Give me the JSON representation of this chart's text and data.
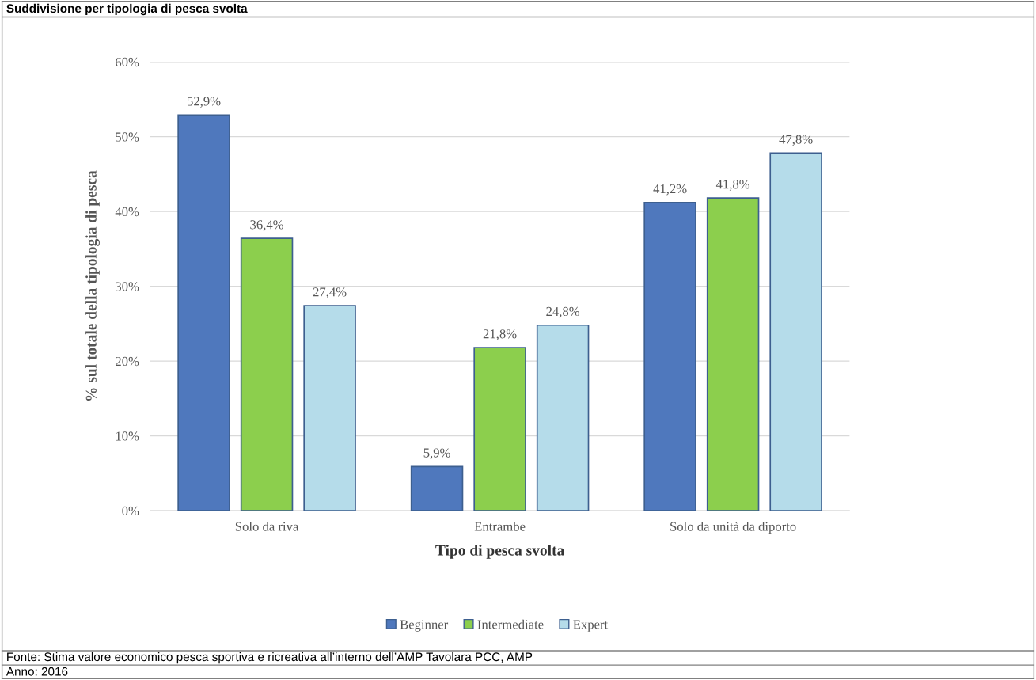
{
  "chart_data": {
    "type": "bar",
    "title": "Suddivisione per tipologia di pesca svolta",
    "xlabel": "Tipo di pesca svolta",
    "ylabel": "% sul totale della tipologia di pesca",
    "categories": [
      "Solo da riva",
      "Entrambe",
      "Solo da unità da diporto"
    ],
    "series": [
      {
        "name": "Beginner",
        "color": "#4f78bd",
        "values": [
          52.9,
          5.9,
          41.2
        ],
        "value_labels": [
          "52,9%",
          "5,9%",
          "41,2%"
        ]
      },
      {
        "name": "Intermediate",
        "color": "#8ccf4d",
        "values": [
          36.4,
          21.8,
          41.8
        ],
        "value_labels": [
          "36,4%",
          "21,8%",
          "41,8%"
        ]
      },
      {
        "name": "Expert",
        "color": "#b5dcea",
        "values": [
          27.4,
          24.8,
          47.8
        ],
        "value_labels": [
          "27,4%",
          "24,8%",
          "47,8%"
        ]
      }
    ],
    "ylim": [
      0,
      60
    ],
    "yticks": [
      {
        "value": 0,
        "label": "0%"
      },
      {
        "value": 10,
        "label": "10%"
      },
      {
        "value": 20,
        "label": "20%"
      },
      {
        "value": 30,
        "label": "30%"
      },
      {
        "value": 40,
        "label": "40%"
      },
      {
        "value": 50,
        "label": "50%"
      },
      {
        "value": 60,
        "label": "60%"
      }
    ],
    "grid": "y",
    "legend": "bottom",
    "annotations": [
      "Fonte: Stima valore economico pesca sportiva e ricreativa all’interno dell’AMP Tavolara PCC, AMP",
      "Anno: 2016"
    ]
  }
}
